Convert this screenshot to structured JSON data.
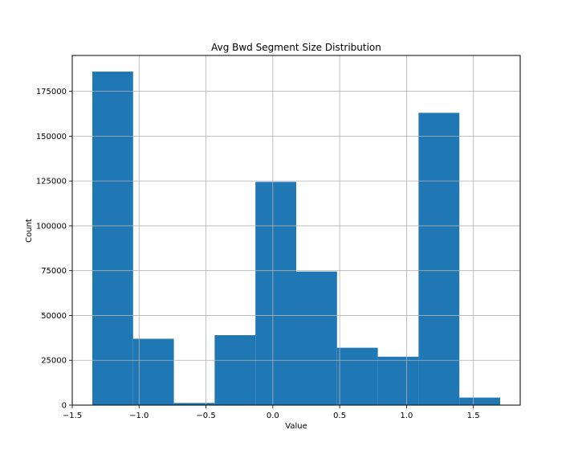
{
  "chart_data": {
    "type": "bar",
    "title": "Avg Bwd Segment Size Distribution",
    "xlabel": "Value",
    "ylabel": "Count",
    "xlim": [
      -1.5,
      1.85
    ],
    "ylim": [
      0,
      195000
    ],
    "grid": true,
    "bar_color": "#1f77b4",
    "bin_edges": [
      -1.35,
      -1.045,
      -0.74,
      -0.435,
      -0.13,
      0.175,
      0.48,
      0.785,
      1.09,
      1.395,
      1.7
    ],
    "values": [
      186000,
      37000,
      1200,
      39000,
      124500,
      74500,
      32000,
      27000,
      163000,
      4200
    ],
    "xticks": [
      -1.5,
      -1.0,
      -0.5,
      0.0,
      0.5,
      1.0,
      1.5
    ],
    "xtick_labels": [
      "−1.5",
      "−1.0",
      "−0.5",
      "0.0",
      "0.5",
      "1.0",
      "1.5"
    ],
    "yticks": [
      0,
      25000,
      50000,
      75000,
      100000,
      125000,
      150000,
      175000
    ],
    "ytick_labels": [
      "0",
      "25000",
      "50000",
      "75000",
      "100000",
      "125000",
      "150000",
      "175000"
    ]
  }
}
